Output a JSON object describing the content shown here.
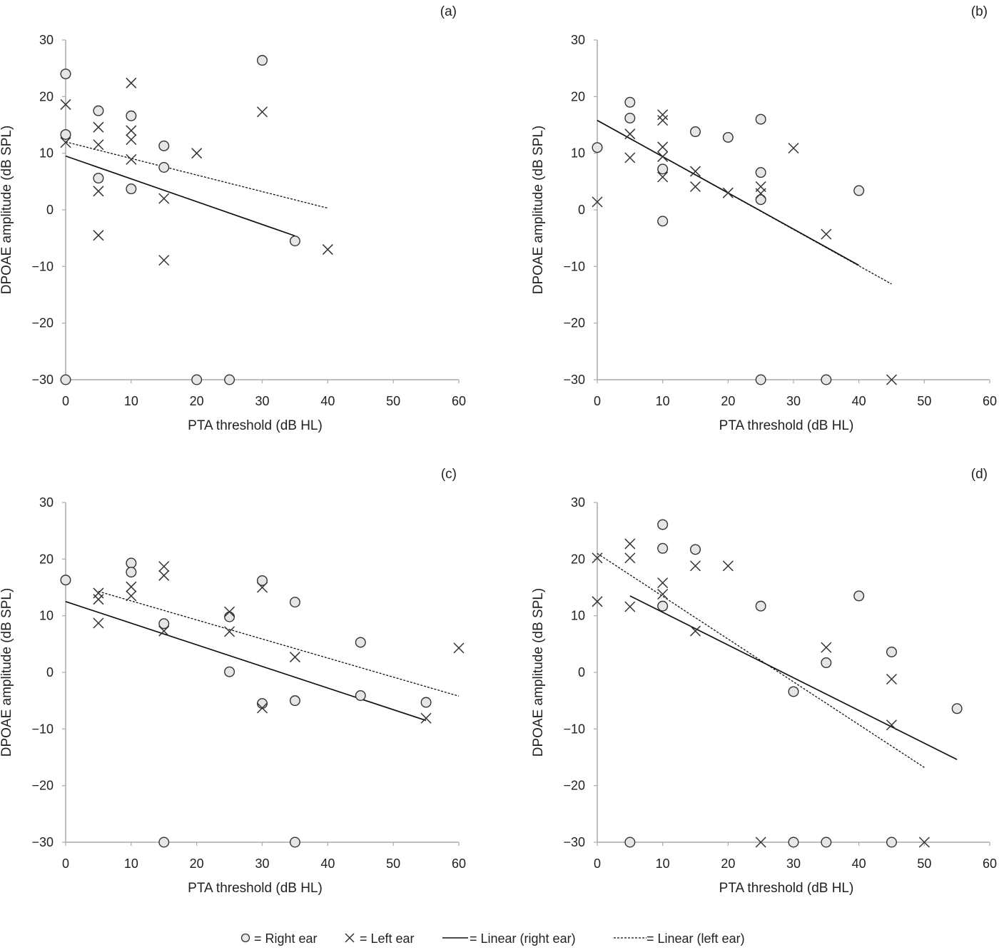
{
  "chart_data": [
    {
      "type": "scatter",
      "panel_label": "(a)",
      "xlabel": "PTA threshold (dB HL)",
      "ylabel": "DPOAE amplitude (dB SPL)",
      "xlim": [
        0,
        60
      ],
      "ylim": [
        -30,
        30
      ],
      "xticks": [
        "0",
        "10",
        "20",
        "30",
        "40",
        "50",
        "60"
      ],
      "yticks": [
        "30",
        "20",
        "10",
        "0",
        "−10",
        "−20",
        "−30"
      ],
      "series": [
        {
          "name": "Right ear",
          "marker": "circle",
          "points": [
            [
              0,
              24
            ],
            [
              0,
              13.3
            ],
            [
              0,
              -30
            ],
            [
              5,
              17.5
            ],
            [
              5,
              5.6
            ],
            [
              10,
              16.6
            ],
            [
              10,
              3.7
            ],
            [
              15,
              11.3
            ],
            [
              15,
              7.5
            ],
            [
              20,
              -30
            ],
            [
              25,
              -30
            ],
            [
              30,
              26.4
            ],
            [
              35,
              -5.5
            ]
          ]
        },
        {
          "name": "Left ear",
          "marker": "x",
          "points": [
            [
              0,
              18.6
            ],
            [
              0,
              11.9
            ],
            [
              5,
              14.6
            ],
            [
              5,
              11.5
            ],
            [
              5,
              3.3
            ],
            [
              5,
              -4.5
            ],
            [
              10,
              22.4
            ],
            [
              10,
              14
            ],
            [
              10,
              12.4
            ],
            [
              10,
              8.9
            ],
            [
              15,
              2
            ],
            [
              15,
              -8.9
            ],
            [
              20,
              10
            ],
            [
              30,
              17.3
            ],
            [
              40,
              -7
            ]
          ]
        }
      ],
      "trendlines": [
        {
          "name": "Linear (right ear)",
          "style": "solid",
          "from": [
            0,
            9.5
          ],
          "to": [
            35,
            -4.6
          ]
        },
        {
          "name": "Linear (left ear)",
          "style": "dashed",
          "from": [
            0,
            12
          ],
          "to": [
            40,
            0.3
          ]
        }
      ]
    },
    {
      "type": "scatter",
      "panel_label": "(b)",
      "xlabel": "PTA threshold (dB HL)",
      "ylabel": "DPOAE amplitude (dB SPL)",
      "xlim": [
        0,
        60
      ],
      "ylim": [
        -30,
        30
      ],
      "xticks": [
        "0",
        "10",
        "20",
        "30",
        "40",
        "50",
        "60"
      ],
      "yticks": [
        "30",
        "20",
        "10",
        "0",
        "−10",
        "−20",
        "−30"
      ],
      "series": [
        {
          "name": "Right ear",
          "marker": "circle",
          "points": [
            [
              0,
              11
            ],
            [
              5,
              19
            ],
            [
              5,
              16.2
            ],
            [
              10,
              7.2
            ],
            [
              10,
              -2
            ],
            [
              15,
              13.8
            ],
            [
              20,
              12.8
            ],
            [
              25,
              16
            ],
            [
              25,
              6.6
            ],
            [
              25,
              1.8
            ],
            [
              40,
              3.4
            ],
            [
              25,
              -30
            ],
            [
              35,
              -30
            ]
          ]
        },
        {
          "name": "Left ear",
          "marker": "x",
          "points": [
            [
              0,
              1.4
            ],
            [
              5,
              13.4
            ],
            [
              5,
              9.2
            ],
            [
              10,
              16.8
            ],
            [
              10,
              15.8
            ],
            [
              10,
              11.1
            ],
            [
              10,
              9.4
            ],
            [
              10,
              5.8
            ],
            [
              15,
              6.8
            ],
            [
              15,
              4.1
            ],
            [
              20,
              3
            ],
            [
              25,
              4.1
            ],
            [
              25,
              2.9
            ],
            [
              30,
              10.9
            ],
            [
              35,
              -4.3
            ],
            [
              45,
              -30
            ]
          ]
        }
      ],
      "trendlines": [
        {
          "name": "Linear (right ear)",
          "style": "solid",
          "from": [
            0,
            15.8
          ],
          "to": [
            40,
            -9.8
          ]
        },
        {
          "name": "Linear (left ear)",
          "style": "dashed",
          "from": [
            0,
            15.8
          ],
          "to": [
            45,
            -13.1
          ]
        }
      ]
    },
    {
      "type": "scatter",
      "panel_label": "(c)",
      "xlabel": "PTA threshold (dB HL)",
      "ylabel": "DPOAE amplitude (dB SPL)",
      "xlim": [
        0,
        60
      ],
      "ylim": [
        -30,
        30
      ],
      "xticks": [
        "0",
        "10",
        "20",
        "30",
        "40",
        "50",
        "60"
      ],
      "yticks": [
        "30",
        "20",
        "10",
        "0",
        "−10",
        "−20",
        "−30"
      ],
      "series": [
        {
          "name": "Right ear",
          "marker": "circle",
          "points": [
            [
              0,
              16.3
            ],
            [
              10,
              19.3
            ],
            [
              10,
              17.7
            ],
            [
              15,
              8.6
            ],
            [
              25,
              9.8
            ],
            [
              25,
              0.1
            ],
            [
              30,
              16.2
            ],
            [
              30,
              -5.5
            ],
            [
              35,
              12.4
            ],
            [
              35,
              -5
            ],
            [
              45,
              5.3
            ],
            [
              45,
              -4.1
            ],
            [
              55,
              -5.3
            ],
            [
              15,
              -30
            ],
            [
              35,
              -30
            ]
          ]
        },
        {
          "name": "Left ear",
          "marker": "x",
          "points": [
            [
              5,
              14
            ],
            [
              5,
              12.9
            ],
            [
              5,
              8.7
            ],
            [
              10,
              15.1
            ],
            [
              10,
              13.5
            ],
            [
              15,
              18.7
            ],
            [
              15,
              17.1
            ],
            [
              15,
              7.3
            ],
            [
              25,
              10.7
            ],
            [
              25,
              7.2
            ],
            [
              30,
              15
            ],
            [
              30,
              -6.3
            ],
            [
              35,
              2.7
            ],
            [
              55,
              -8.1
            ],
            [
              60,
              4.3
            ]
          ]
        }
      ],
      "trendlines": [
        {
          "name": "Linear (right ear)",
          "style": "solid",
          "from": [
            0,
            12.5
          ],
          "to": [
            55,
            -8.5
          ]
        },
        {
          "name": "Linear (left ear)",
          "style": "dashed",
          "from": [
            5,
            14.3
          ],
          "to": [
            60,
            -4.2
          ]
        }
      ]
    },
    {
      "type": "scatter",
      "panel_label": "(d)",
      "xlabel": "PTA threshold (dB HL)",
      "ylabel": "DPOAE amplitude (dB SPL)",
      "xlim": [
        0,
        60
      ],
      "ylim": [
        -30,
        30
      ],
      "xticks": [
        "0",
        "10",
        "20",
        "30",
        "40",
        "50",
        "60"
      ],
      "yticks": [
        "30",
        "20",
        "10",
        "0",
        "−10",
        "−20",
        "−30"
      ],
      "series": [
        {
          "name": "Right ear",
          "marker": "circle",
          "points": [
            [
              5,
              -30
            ],
            [
              10,
              26.1
            ],
            [
              10,
              21.9
            ],
            [
              10,
              11.7
            ],
            [
              15,
              21.7
            ],
            [
              25,
              11.7
            ],
            [
              30,
              -3.4
            ],
            [
              35,
              1.7
            ],
            [
              40,
              13.5
            ],
            [
              45,
              3.6
            ],
            [
              55,
              -6.4
            ],
            [
              30,
              -30
            ],
            [
              35,
              -30
            ],
            [
              45,
              -30
            ]
          ]
        },
        {
          "name": "Left ear",
          "marker": "x",
          "points": [
            [
              0,
              20.2
            ],
            [
              0,
              12.5
            ],
            [
              5,
              22.7
            ],
            [
              5,
              20.2
            ],
            [
              5,
              11.6
            ],
            [
              10,
              15.8
            ],
            [
              10,
              13.8
            ],
            [
              15,
              18.8
            ],
            [
              15,
              7.3
            ],
            [
              20,
              18.8
            ],
            [
              35,
              4.4
            ],
            [
              45,
              -1.2
            ],
            [
              45,
              -9.3
            ],
            [
              25,
              -30
            ],
            [
              50,
              -30
            ]
          ]
        }
      ],
      "trendlines": [
        {
          "name": "Linear (right ear)",
          "style": "solid",
          "from": [
            5,
            13.5
          ],
          "to": [
            55,
            -15.4
          ]
        },
        {
          "name": "Linear (left ear)",
          "style": "dashed",
          "from": [
            0,
            21
          ],
          "to": [
            50,
            -16.8
          ]
        }
      ]
    }
  ],
  "legend": {
    "placement": "bottom",
    "items": [
      {
        "marker": "circle",
        "label": "= Right ear"
      },
      {
        "marker": "x",
        "label": "= Left ear"
      },
      {
        "marker": "solid",
        "label": "= Linear (right ear)"
      },
      {
        "marker": "dashed",
        "label": "= Linear (left ear)"
      }
    ]
  },
  "colors": {
    "marker_stroke": "#333333",
    "marker_fill": "#e6e6e6",
    "axis": "#aaaaaa",
    "line": "#111111"
  }
}
